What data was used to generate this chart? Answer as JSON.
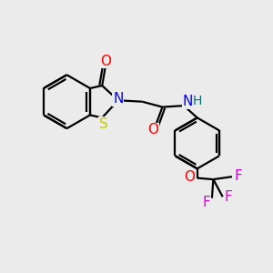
{
  "bg_color": "#EBEBEB",
  "bond_color": "#000000",
  "atom_colors": {
    "O": "#FF0000",
    "N": "#0000FF",
    "S": "#C8C800",
    "H": "#007070",
    "F": "#E000E0",
    "C": "#000000"
  },
  "line_width": 1.6,
  "font_size": 10,
  "fig_size": [
    3.0,
    3.0
  ],
  "dpi": 100,
  "xlim": [
    0,
    10
  ],
  "ylim": [
    0,
    10
  ]
}
